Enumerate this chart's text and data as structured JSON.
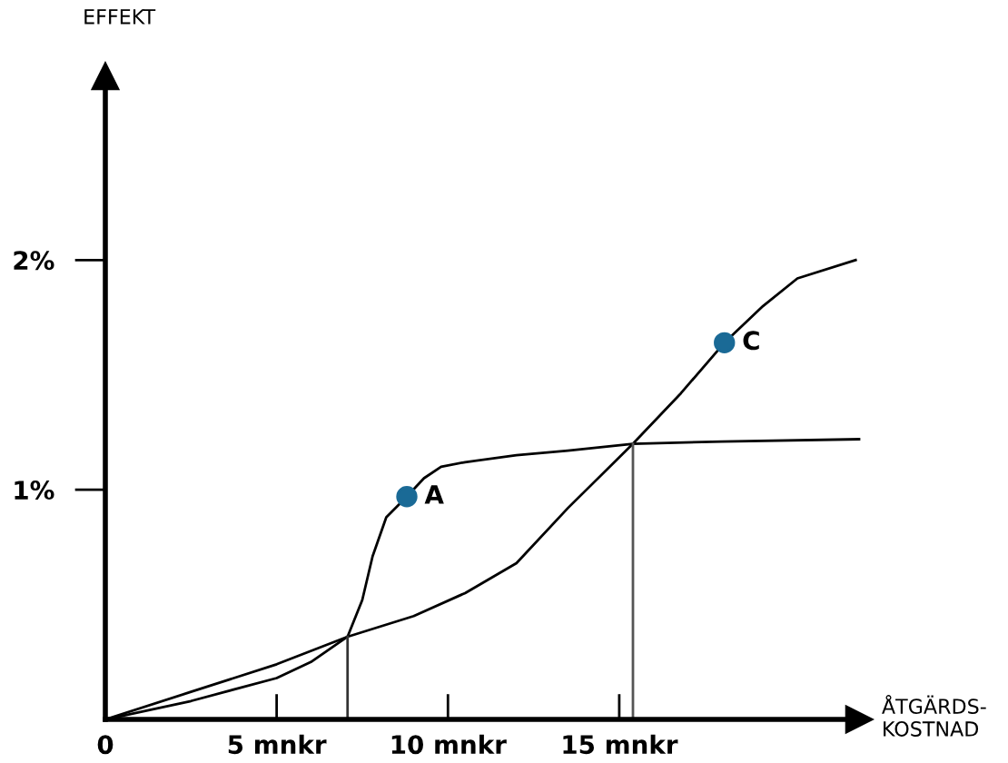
{
  "chart_data": {
    "type": "line",
    "xlabel": "ÅTGÄRDS-\nKOSTNAD",
    "ylabel": "EFFEKT",
    "xlim": [
      0,
      22
    ],
    "ylim": [
      0,
      2.8
    ],
    "xticks": [
      {
        "value": 0,
        "label": "0"
      },
      {
        "value": 5,
        "label": "5 mnkr"
      },
      {
        "value": 10,
        "label": "10 mnkr"
      },
      {
        "value": 15,
        "label": "15 mnkr"
      }
    ],
    "yticks": [
      {
        "value": 1,
        "label": "1%"
      },
      {
        "value": 2,
        "label": "2%"
      }
    ],
    "grid": false,
    "legend": false,
    "marker": "none",
    "line_style": "solid",
    "series": [
      {
        "color": "#000000",
        "x": [
          0,
          2.5,
          5,
          6,
          7.07,
          7.5,
          7.8,
          8.2,
          8.8,
          9.3,
          9.8,
          10.5,
          12,
          13.5,
          15.4,
          18,
          22
        ],
        "values": [
          0,
          0.08,
          0.18,
          0.25,
          0.36,
          0.52,
          0.71,
          0.88,
          0.97,
          1.05,
          1.1,
          1.12,
          1.15,
          1.17,
          1.2,
          1.21,
          1.22
        ]
      },
      {
        "color": "#000000",
        "x": [
          0,
          2.5,
          5,
          7.07,
          9,
          10.5,
          12,
          13.5,
          15.4,
          16.8,
          18.07,
          19.2,
          20.2,
          21.9
        ],
        "values": [
          0,
          0.12,
          0.24,
          0.36,
          0.45,
          0.55,
          0.68,
          0.92,
          1.2,
          1.42,
          1.64,
          1.8,
          1.92,
          2.0
        ]
      },
      {
        "color": "#333333",
        "x": [
          7.07,
          7.07
        ],
        "values": [
          0,
          0.36
        ]
      },
      {
        "color": "#555555",
        "x": [
          15.4,
          15.4
        ],
        "values": [
          0,
          1.2
        ]
      },
      {
        "type": "scatter",
        "marker": "circle",
        "color": "#1a6a96",
        "x": [
          8.8,
          18.07
        ],
        "values": [
          0.97,
          1.64
        ]
      }
    ],
    "annotations": [
      {
        "text": "A",
        "x": 8.8,
        "y": 0.97
      },
      {
        "text": "C",
        "x": 18.07,
        "y": 1.64
      }
    ]
  }
}
